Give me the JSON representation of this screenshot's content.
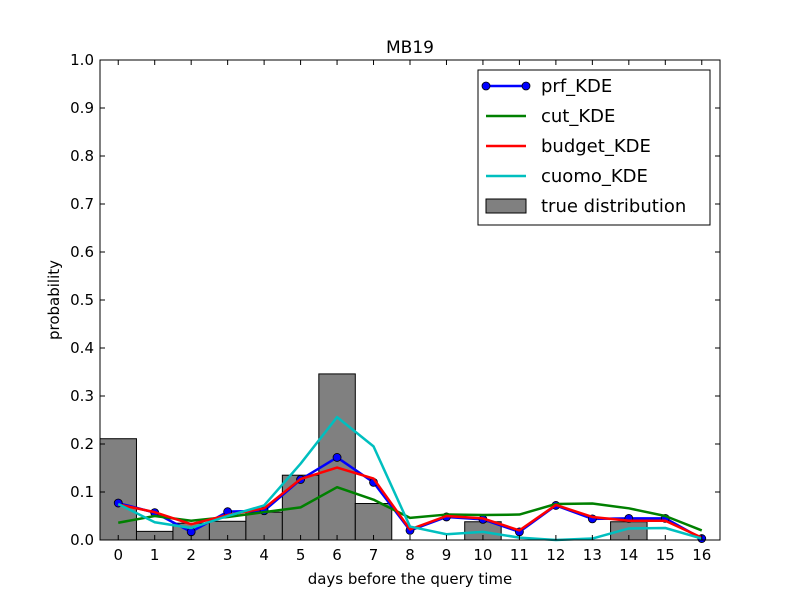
{
  "chart_data": {
    "type": "line",
    "title": "MB19",
    "xlabel": "days before the query time",
    "ylabel": "probability",
    "xlim": [
      -0.5,
      16.5
    ],
    "ylim": [
      0.0,
      1.0
    ],
    "x_ticks": [
      0,
      1,
      2,
      3,
      4,
      5,
      6,
      7,
      8,
      9,
      10,
      11,
      12,
      13,
      14,
      15,
      16
    ],
    "y_ticks": [
      0.0,
      0.1,
      0.2,
      0.3,
      0.4,
      0.5,
      0.6,
      0.7,
      0.8,
      0.9,
      1.0
    ],
    "y_tick_labels": [
      "0.0",
      "0.1",
      "0.2",
      "0.3",
      "0.4",
      "0.5",
      "0.6",
      "0.7",
      "0.8",
      "0.9",
      "1.0"
    ],
    "grid": false,
    "legend_position": "top-right",
    "x": [
      0,
      1,
      2,
      3,
      4,
      5,
      6,
      7,
      8,
      9,
      10,
      11,
      12,
      13,
      14,
      15,
      16
    ],
    "series": [
      {
        "name": "prf_KDE",
        "style": "line-marker",
        "color": "#0000ff",
        "values": [
          0.077,
          0.057,
          0.017,
          0.059,
          0.061,
          0.126,
          0.172,
          0.12,
          0.02,
          0.048,
          0.043,
          0.017,
          0.072,
          0.044,
          0.045,
          0.045,
          0.003
        ]
      },
      {
        "name": "cut_KDE",
        "style": "line",
        "color": "#008000",
        "values": [
          0.036,
          0.05,
          0.04,
          0.048,
          0.058,
          0.068,
          0.11,
          0.084,
          0.046,
          0.053,
          0.052,
          0.053,
          0.075,
          0.076,
          0.066,
          0.05,
          0.02
        ]
      },
      {
        "name": "budget_KDE",
        "style": "line",
        "color": "#ff0000",
        "values": [
          0.074,
          0.058,
          0.033,
          0.052,
          0.066,
          0.127,
          0.151,
          0.128,
          0.022,
          0.05,
          0.045,
          0.02,
          0.073,
          0.048,
          0.04,
          0.04,
          0.005
        ]
      },
      {
        "name": "cuomo_KDE",
        "style": "line",
        "color": "#00bfbf",
        "values": [
          0.075,
          0.037,
          0.025,
          0.05,
          0.072,
          0.159,
          0.256,
          0.195,
          0.028,
          0.012,
          0.017,
          0.005,
          0.0,
          0.003,
          0.024,
          0.025,
          0.003
        ]
      },
      {
        "name": "true distribution",
        "style": "bar",
        "color": "#808080",
        "values": [
          0.211,
          0.018,
          0.035,
          0.039,
          0.058,
          0.135,
          0.346,
          0.076,
          0.0,
          0.0,
          0.038,
          0.0,
          0.0,
          0.0,
          0.038,
          0.0,
          0.0
        ]
      }
    ]
  }
}
